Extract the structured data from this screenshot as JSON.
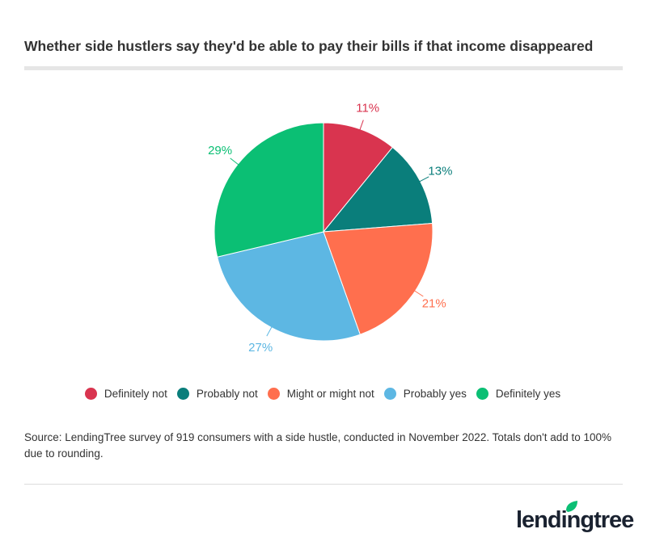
{
  "chart_data": {
    "type": "pie",
    "title": "Whether side hustlers say they'd be able to pay their bills if that income disappeared",
    "categories": [
      "Definitely not",
      "Probably not",
      "Might or might not",
      "Probably yes",
      "Definitely yes"
    ],
    "values": [
      11,
      13,
      21,
      27,
      29
    ],
    "labels": [
      "11%",
      "13%",
      "21%",
      "27%",
      "29%"
    ],
    "colors": [
      "#D9344F",
      "#0A7E7B",
      "#FF6F4E",
      "#5DB7E3",
      "#0BBF74"
    ],
    "legend_position": "bottom",
    "start_angle": "top, clockwise"
  },
  "source": "Source: LendingTree survey of 919 consumers with a side hustle, conducted in November 2022. Totals don't add to 100% due to rounding.",
  "logo": {
    "text": "lendingtree"
  }
}
